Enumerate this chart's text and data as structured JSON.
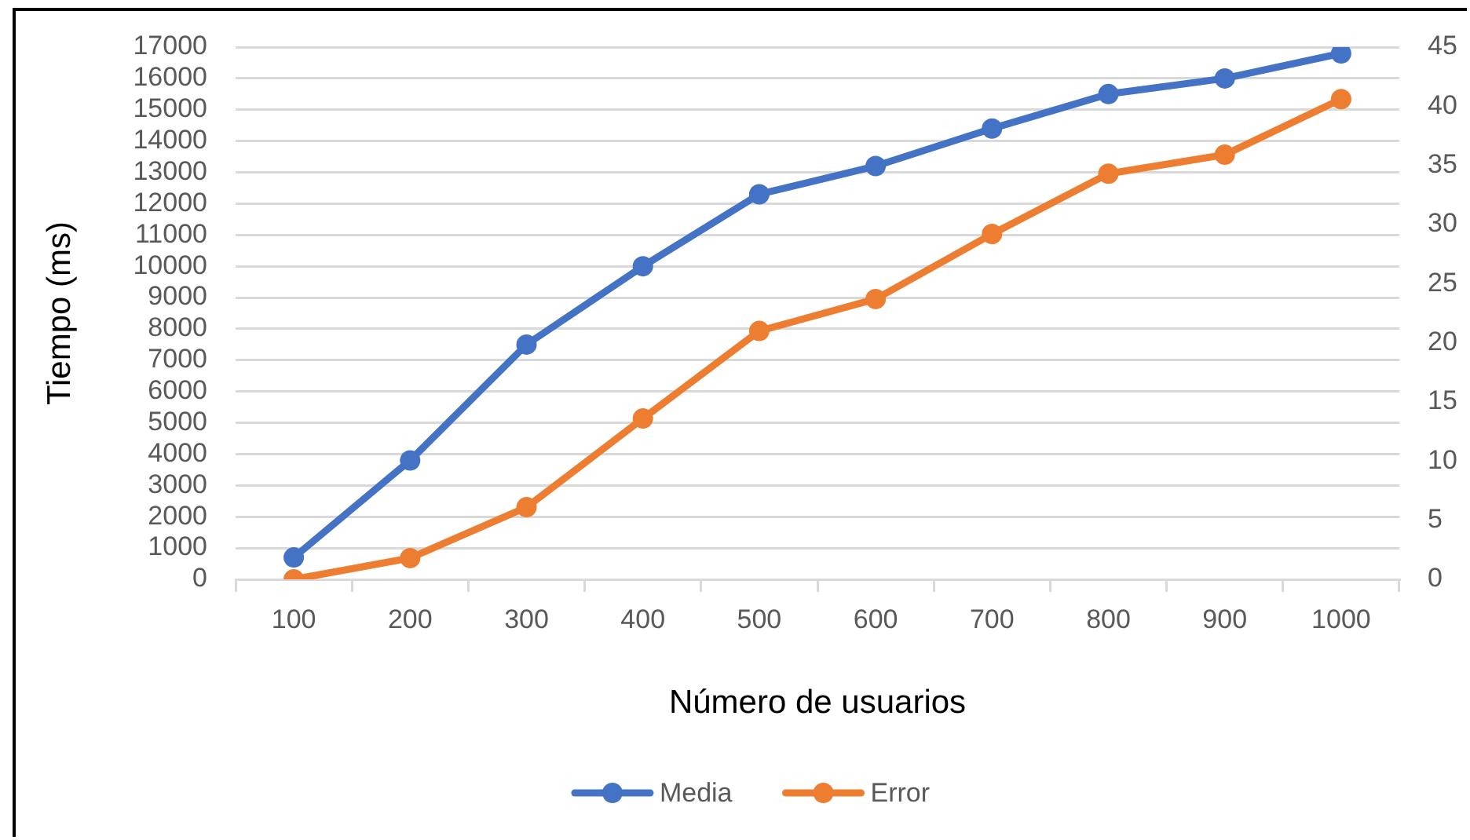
{
  "chart_data": {
    "type": "line",
    "xlabel": "Número de usuarios",
    "ylabel": "Tiempo (ms)",
    "categories": [
      "100",
      "200",
      "300",
      "400",
      "500",
      "600",
      "700",
      "800",
      "900",
      "1000"
    ],
    "series": [
      {
        "name": "Media",
        "color": "#4472c4",
        "values": [
          700,
          3800,
          7500,
          10000,
          12300,
          13200,
          14400,
          15500,
          16000,
          16800
        ]
      },
      {
        "name": "Error",
        "color": "#ed7d31",
        "axis": "y2",
        "values": [
          0,
          1.8,
          6.1,
          13.6,
          21.0,
          23.7,
          29.2,
          34.3,
          35.9,
          40.6
        ]
      }
    ],
    "ylim": [
      0,
      17000
    ],
    "yticks": [
      0,
      1000,
      2000,
      3000,
      4000,
      5000,
      6000,
      7000,
      8000,
      9000,
      10000,
      11000,
      12000,
      13000,
      14000,
      15000,
      16000,
      17000
    ],
    "y2lim": [
      0,
      45
    ],
    "y2ticks": [
      0,
      5,
      10,
      15,
      20,
      25,
      30,
      35,
      40,
      45
    ],
    "grid": "y",
    "legend": "bottom",
    "marker": "circle",
    "line_style": "solid"
  }
}
